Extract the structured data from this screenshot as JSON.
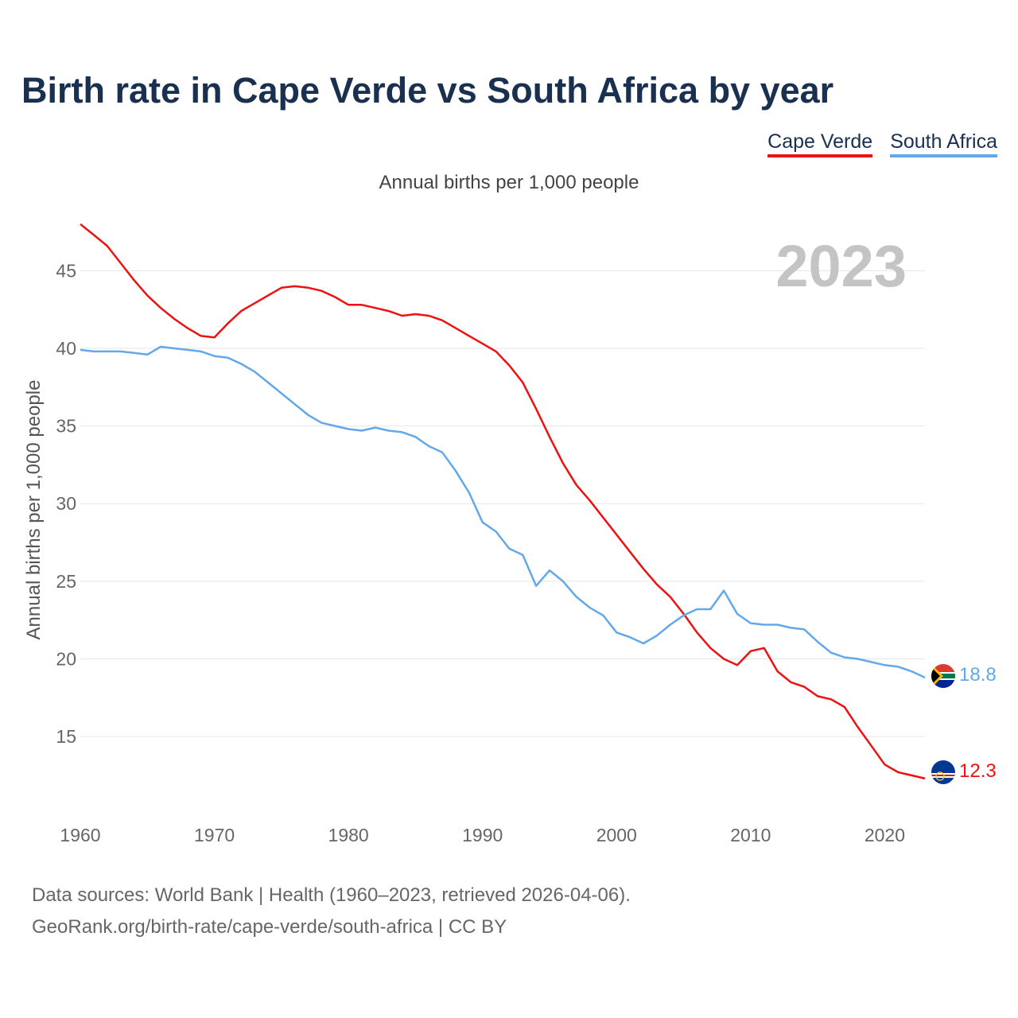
{
  "title": "Birth rate in Cape Verde vs South Africa by year",
  "subtitle": "Annual births per 1,000 people",
  "legend": [
    {
      "name": "Cape Verde",
      "color": "#ee1111"
    },
    {
      "name": "South Africa",
      "color": "#62a8ea"
    }
  ],
  "chart_data": {
    "type": "line",
    "title": "Birth rate in Cape Verde vs South Africa by year",
    "xlabel": "",
    "ylabel": "Annual births per 1,000 people",
    "xlim": [
      1960,
      2023
    ],
    "ylim": [
      10.5,
      48.5
    ],
    "x_ticks": [
      1960,
      1970,
      1980,
      1990,
      2000,
      2010,
      2020
    ],
    "y_ticks": [
      15,
      20,
      25,
      30,
      35,
      40,
      45
    ],
    "year_watermark": "2023",
    "x": [
      1960,
      1961,
      1962,
      1963,
      1964,
      1965,
      1966,
      1967,
      1968,
      1969,
      1970,
      1971,
      1972,
      1973,
      1974,
      1975,
      1976,
      1977,
      1978,
      1979,
      1980,
      1981,
      1982,
      1983,
      1984,
      1985,
      1986,
      1987,
      1988,
      1989,
      1990,
      1991,
      1992,
      1993,
      1994,
      1995,
      1996,
      1997,
      1998,
      1999,
      2000,
      2001,
      2002,
      2003,
      2004,
      2005,
      2006,
      2007,
      2008,
      2009,
      2010,
      2011,
      2012,
      2013,
      2014,
      2015,
      2016,
      2017,
      2018,
      2019,
      2020,
      2021,
      2022,
      2023
    ],
    "series": [
      {
        "name": "Cape Verde",
        "color": "#ee1111",
        "end_label": "12.3",
        "values": [
          48.0,
          47.3,
          46.6,
          45.5,
          44.4,
          43.4,
          42.6,
          41.9,
          41.3,
          40.8,
          40.7,
          41.6,
          42.4,
          42.9,
          43.4,
          43.9,
          44.0,
          43.9,
          43.7,
          43.3,
          42.8,
          42.8,
          42.6,
          42.4,
          42.1,
          42.2,
          42.1,
          41.8,
          41.3,
          40.8,
          40.3,
          39.8,
          38.9,
          37.8,
          36.1,
          34.3,
          32.6,
          31.2,
          30.2,
          29.1,
          28.0,
          26.9,
          25.8,
          24.8,
          24.0,
          22.9,
          21.7,
          20.7,
          20.0,
          19.6,
          20.5,
          20.7,
          19.2,
          18.5,
          18.2,
          17.6,
          17.4,
          16.9,
          15.6,
          14.4,
          13.2,
          12.7,
          12.5,
          12.3
        ]
      },
      {
        "name": "South Africa",
        "color": "#62a8ea",
        "end_label": "18.8",
        "values": [
          39.9,
          39.8,
          39.8,
          39.8,
          39.7,
          39.6,
          40.1,
          40.0,
          39.9,
          39.8,
          39.5,
          39.4,
          39.0,
          38.5,
          37.8,
          37.1,
          36.4,
          35.7,
          35.2,
          35.0,
          34.8,
          34.7,
          34.9,
          34.7,
          34.6,
          34.3,
          33.7,
          33.3,
          32.1,
          30.7,
          28.8,
          28.2,
          27.1,
          26.7,
          24.7,
          25.7,
          25.0,
          24.0,
          23.3,
          22.8,
          21.7,
          21.4,
          21.0,
          21.5,
          22.2,
          22.8,
          23.2,
          23.2,
          24.4,
          22.9,
          22.3,
          22.2,
          22.2,
          22.0,
          21.9,
          21.1,
          20.4,
          20.1,
          20.0,
          19.8,
          19.6,
          19.5,
          19.2,
          18.8
        ]
      }
    ]
  },
  "footer": {
    "line1": "Data sources: World Bank | Health (1960–2023, retrieved 2026-04-06).",
    "line2": "GeoRank.org/birth-rate/cape-verde/south-africa | CC BY"
  }
}
